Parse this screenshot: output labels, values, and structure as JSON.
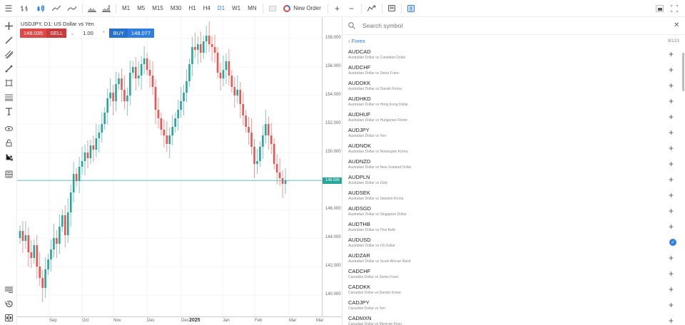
{
  "toolbar": {
    "menu_icon": "☰",
    "timeframes": [
      "M1",
      "M5",
      "M15",
      "M30",
      "H1",
      "H4",
      "D1",
      "W1",
      "MN"
    ],
    "active_timeframe": "D1",
    "new_order_label": "New Order",
    "zoom_in": "+",
    "zoom_out": "−"
  },
  "chart": {
    "title": "USDJPY, D1: US Dollar vs Yen",
    "sell_price": "148.035",
    "sell_label": "SELL",
    "volume": "1.00",
    "buy_label": "BUY",
    "buy_price": "148.077",
    "current_price_label": "148.035",
    "colors": {
      "up": "#26a69a",
      "down": "#ef5350",
      "price_line": "#26a69a"
    },
    "y_ticks": [
      "158.000",
      "156.000",
      "154.000",
      "152.000",
      "150.000",
      "146.000",
      "144.000",
      "142.000",
      "140.000"
    ],
    "x_ticks": [
      "Sep",
      "Oct",
      "Nov",
      "Dec",
      "Dec",
      "2025",
      "Jan",
      "Feb",
      "Mar",
      "Mar"
    ]
  },
  "chart_data": {
    "type": "candlestick",
    "title": "USDJPY, D1: US Dollar vs Yen",
    "ylim": [
      138.5,
      159.5
    ],
    "current_price": 148.035,
    "closes": [
      144.5,
      143.8,
      144.2,
      143.0,
      142.6,
      143.5,
      142.0,
      141.2,
      140.5,
      141.8,
      142.5,
      143.2,
      144.0,
      143.6,
      144.8,
      145.6,
      144.2,
      145.8,
      147.2,
      148.5,
      148.0,
      149.0,
      149.4,
      150.0,
      149.6,
      150.5,
      150.2,
      151.0,
      151.4,
      152.0,
      152.8,
      153.8,
      154.2,
      153.6,
      154.8,
      155.2,
      154.4,
      153.6,
      154.0,
      155.6,
      156.0,
      155.2,
      155.4,
      156.2,
      156.6,
      155.8,
      155.4,
      154.6,
      153.0,
      152.4,
      151.6,
      151.2,
      150.6,
      151.2,
      151.8,
      152.4,
      153.0,
      153.6,
      154.2,
      155.0,
      156.2,
      157.4,
      157.2,
      157.6,
      157.0,
      157.8,
      158.2,
      157.6,
      157.4,
      157.0,
      155.6,
      155.2,
      155.8,
      156.4,
      155.4,
      154.6,
      154.0,
      154.4,
      153.4,
      152.6,
      151.8,
      151.4,
      150.4,
      149.2,
      149.4,
      150.4,
      151.2,
      152.0,
      151.2,
      150.6,
      149.2,
      148.6,
      148.2,
      147.8,
      148.035
    ],
    "series": [
      {
        "name": "USDJPY",
        "values": "see closes"
      }
    ]
  },
  "panel": {
    "search_placeholder": "Search symbol",
    "breadcrumb": "Forex",
    "count": "9/123",
    "symbols": [
      {
        "code": "AUDCAD",
        "desc": "Australian Dollar vs Canadian Dollar",
        "added": false
      },
      {
        "code": "AUDCHF",
        "desc": "Australian Dollar vs Swiss Franc",
        "added": false
      },
      {
        "code": "AUDDKK",
        "desc": "Australian Dollar vs Danish Krona",
        "added": false
      },
      {
        "code": "AUDHKD",
        "desc": "Australian Dollar vs Hong Kong Dollar",
        "added": false
      },
      {
        "code": "AUDHUF",
        "desc": "Australian Dollar vs Hungarian Florint",
        "added": false
      },
      {
        "code": "AUDJPY",
        "desc": "Australian Dollar vs Yen",
        "added": false
      },
      {
        "code": "AUDNOK",
        "desc": "Australian Dollar vs Norwegian Krona",
        "added": false
      },
      {
        "code": "AUDNZD",
        "desc": "Australian Dollar vs New Zealand Dollar",
        "added": false
      },
      {
        "code": "AUDPLN",
        "desc": "Australian Dollar vs Zloty",
        "added": false
      },
      {
        "code": "AUDSEK",
        "desc": "Australian Dollar vs Sweden Krona",
        "added": false
      },
      {
        "code": "AUDSGD",
        "desc": "Australian Dollar vs Singapore Dollar",
        "added": false
      },
      {
        "code": "AUDTHB",
        "desc": "Australian Dollar vs Thai Baht",
        "added": false
      },
      {
        "code": "AUDUSD",
        "desc": "Australian Dollar vs US Dollar",
        "added": true
      },
      {
        "code": "AUDZAR",
        "desc": "Australian Dollar vs South African Rand",
        "added": false
      },
      {
        "code": "CADCHF",
        "desc": "Canadian Dollar vs Swiss Franc",
        "added": false
      },
      {
        "code": "CADDKK",
        "desc": "Canadian Dollar vs Danish Krone",
        "added": false
      },
      {
        "code": "CADJPY",
        "desc": "Canadian Dollar vs Yen",
        "added": false
      },
      {
        "code": "CADMXN",
        "desc": "Canadian Dollar vs Mexican Peso",
        "added": false
      }
    ]
  }
}
